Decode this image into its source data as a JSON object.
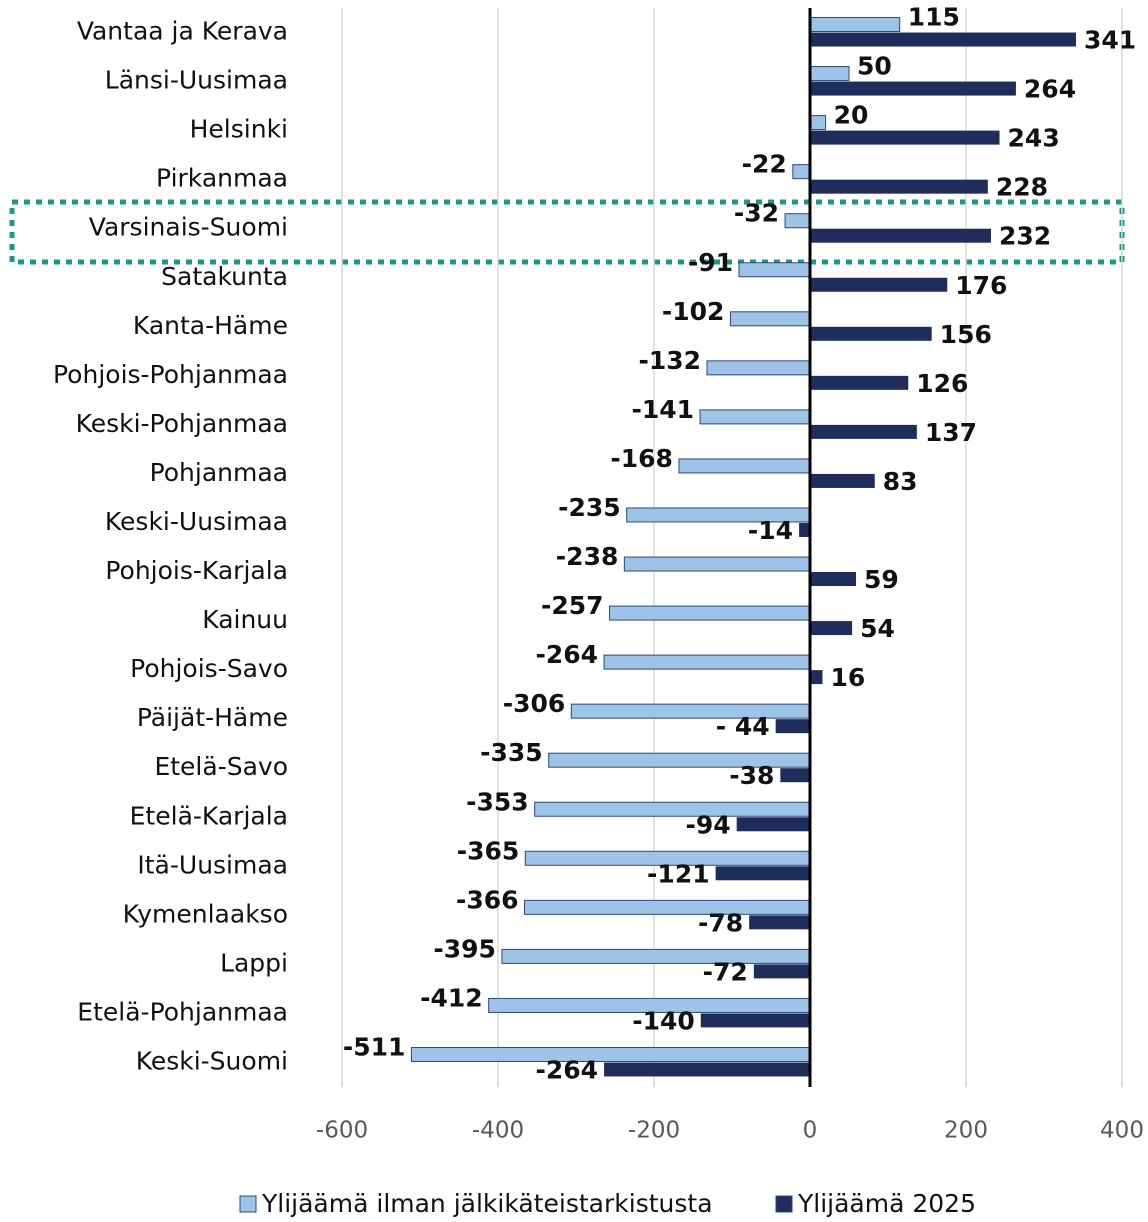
{
  "chart_data": {
    "type": "hbar",
    "categories": [
      "Vantaa ja Kerava",
      "Länsi-Uusimaa",
      "Helsinki",
      "Pirkanmaa",
      "Varsinais-Suomi",
      "Satakunta",
      "Kanta-Häme",
      "Pohjois-Pohjanmaa",
      "Keski-Pohjanmaa",
      "Pohjanmaa",
      "Keski-Uusimaa",
      "Pohjois-Karjala",
      "Kainuu",
      "Pohjois-Savo",
      "Päijät-Häme",
      "Etelä-Savo",
      "Etelä-Karjala",
      "Itä-Uusimaa",
      "Kymenlaakso",
      "Lappi",
      "Etelä-Pohjanmaa",
      "Keski-Suomi"
    ],
    "series": [
      {
        "name": "Ylijäämä ilman jälkikäteistarkistusta",
        "color": "#9dc3e6",
        "values": [
          115,
          50,
          20,
          -22,
          -32,
          -91,
          -102,
          -132,
          -141,
          -168,
          -235,
          -238,
          -257,
          -264,
          -306,
          -335,
          -353,
          -365,
          -366,
          -395,
          -412,
          -511
        ]
      },
      {
        "name": "Ylijäämä 2025",
        "color": "#1f2d5c",
        "values": [
          341,
          264,
          243,
          228,
          232,
          176,
          156,
          126,
          137,
          83,
          -14,
          59,
          54,
          16,
          -44,
          -38,
          -94,
          -121,
          -78,
          -72,
          -140,
          -264
        ],
        "value_labels": [
          "341",
          "264",
          "243",
          "228",
          "232",
          "176",
          "156",
          "126",
          "137",
          "83",
          "-14",
          "59",
          "54",
          "16",
          "- 44",
          "-38",
          "-94",
          "-121",
          "-78",
          "-72",
          "-140",
          "-264"
        ]
      }
    ],
    "xlim": [
      -600,
      400
    ],
    "xticks": [
      -600,
      -400,
      -200,
      0,
      200,
      400
    ],
    "grid": true
  }
}
